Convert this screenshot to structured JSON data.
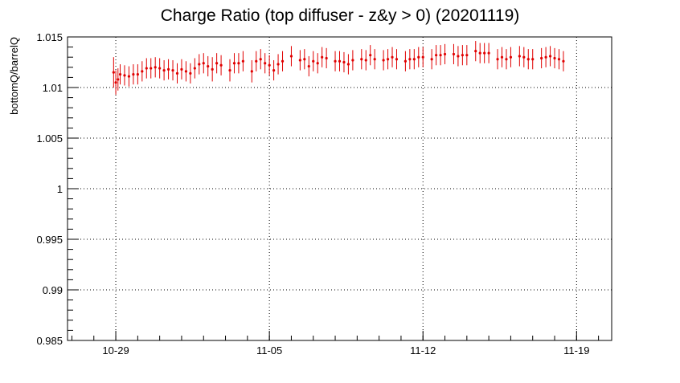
{
  "chart_data": {
    "type": "scatter",
    "title": "Charge Ratio (top diffuser - z&y > 0) (20201119)",
    "xlabel": "",
    "ylabel": "bottomQ/barrelQ",
    "x_ticks": [
      "10-29",
      "11-05",
      "11-12",
      "11-19"
    ],
    "x_tick_days": [
      0,
      7,
      14,
      21
    ],
    "x_range_days": [
      -2.2,
      22.6
    ],
    "y_ticks": [
      "0.985",
      "0.99",
      "0.995",
      "1",
      "1.005",
      "1.01",
      "1.015"
    ],
    "y_tick_values": [
      0.985,
      0.99,
      0.995,
      1.0,
      1.005,
      1.01,
      1.015
    ],
    "ylim": [
      0.985,
      1.015
    ],
    "grid": true,
    "marker_color": "#e00000",
    "x_days": [
      -0.1,
      0.0,
      0.1,
      0.2,
      0.4,
      0.6,
      0.8,
      1.0,
      1.2,
      1.4,
      1.6,
      1.8,
      2.0,
      2.2,
      2.4,
      2.6,
      2.8,
      3.0,
      3.2,
      3.4,
      3.6,
      3.8,
      4.0,
      4.2,
      4.4,
      4.6,
      4.8,
      5.2,
      5.4,
      5.6,
      5.8,
      6.2,
      6.4,
      6.6,
      6.8,
      7.0,
      7.2,
      7.4,
      7.6,
      8.0,
      8.4,
      8.6,
      8.8,
      9.0,
      9.2,
      9.4,
      9.6,
      10.0,
      10.2,
      10.4,
      10.6,
      10.8,
      11.2,
      11.4,
      11.6,
      11.8,
      12.2,
      12.4,
      12.6,
      12.8,
      13.2,
      13.4,
      13.6,
      13.8,
      14.0,
      14.4,
      14.6,
      14.8,
      15.0,
      15.4,
      15.6,
      15.8,
      16.0,
      16.4,
      16.6,
      16.8,
      17.0,
      17.4,
      17.6,
      17.8,
      18.0,
      18.4,
      18.6,
      18.8,
      19.0,
      19.4,
      19.6,
      19.8,
      20.0,
      20.2,
      20.4
    ],
    "y_values": [
      1.0115,
      1.0105,
      1.0108,
      1.0113,
      1.0112,
      1.0111,
      1.0113,
      1.0113,
      1.0116,
      1.0119,
      1.0119,
      1.012,
      1.0119,
      1.0117,
      1.0118,
      1.0117,
      1.0114,
      1.0118,
      1.0116,
      1.0114,
      1.0119,
      1.0123,
      1.0124,
      1.0121,
      1.0118,
      1.0124,
      1.0122,
      1.0117,
      1.0124,
      1.0124,
      1.0126,
      1.0116,
      1.0126,
      1.0128,
      1.0124,
      1.0122,
      1.0117,
      1.0123,
      1.0126,
      1.0131,
      1.0127,
      1.0128,
      1.0121,
      1.0126,
      1.0124,
      1.013,
      1.0129,
      1.0126,
      1.0126,
      1.0125,
      1.0123,
      1.0127,
      1.0128,
      1.0127,
      1.0132,
      1.0128,
      1.0127,
      1.0128,
      1.013,
      1.0128,
      1.0126,
      1.0128,
      1.0128,
      1.013,
      1.013,
      1.0128,
      1.0132,
      1.0132,
      1.0133,
      1.0133,
      1.0131,
      1.0132,
      1.0132,
      1.0136,
      1.0134,
      1.0134,
      1.0134,
      1.0128,
      1.013,
      1.0128,
      1.013,
      1.0131,
      1.013,
      1.0128,
      1.0128,
      1.0129,
      1.013,
      1.0131,
      1.0129,
      1.0128,
      1.0126
    ],
    "y_errors": [
      0.0015,
      0.0012,
      0.0011,
      0.001,
      0.001,
      0.001,
      0.001,
      0.001,
      0.001,
      0.001,
      0.001,
      0.001,
      0.001,
      0.001,
      0.001,
      0.001,
      0.001,
      0.001,
      0.001,
      0.001,
      0.001,
      0.001,
      0.001,
      0.001,
      0.0012,
      0.001,
      0.001,
      0.0011,
      0.001,
      0.001,
      0.001,
      0.0011,
      0.001,
      0.001,
      0.001,
      0.001,
      0.001,
      0.001,
      0.001,
      0.001,
      0.001,
      0.001,
      0.001,
      0.001,
      0.001,
      0.001,
      0.001,
      0.001,
      0.001,
      0.001,
      0.001,
      0.001,
      0.001,
      0.001,
      0.001,
      0.001,
      0.001,
      0.001,
      0.001,
      0.001,
      0.001,
      0.001,
      0.001,
      0.001,
      0.001,
      0.001,
      0.001,
      0.001,
      0.001,
      0.001,
      0.001,
      0.001,
      0.001,
      0.001,
      0.001,
      0.001,
      0.001,
      0.001,
      0.001,
      0.001,
      0.001,
      0.001,
      0.001,
      0.001,
      0.001,
      0.001,
      0.001,
      0.001,
      0.001,
      0.001,
      0.001
    ]
  }
}
